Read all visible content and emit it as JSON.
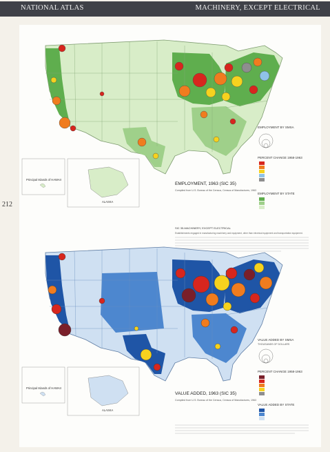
{
  "header": {
    "left_title": "NATIONAL ATLAS",
    "right_title": "MACHINERY, EXCEPT ELECTRICAL"
  },
  "page_number": "212",
  "colors": {
    "header_bg": "#3f4148",
    "state_green_dark": "#5fae4e",
    "state_green_mid": "#9fd08a",
    "state_green_light": "#d8edc8",
    "state_blue_dark": "#1f55a6",
    "state_blue_mid": "#4d87cf",
    "state_blue_light": "#cfe0f2",
    "change_red": "#d7261e",
    "change_orange": "#f07c1f",
    "change_yellow": "#f6d21e",
    "change_grey": "#8e8e8e",
    "change_lightblue": "#8fc3e8",
    "change_maroon": "#7a1f2a"
  },
  "map_employment": {
    "title": "EMPLOYMENT, 1963 (SIC 35)",
    "inset_hawaii": "Principal Islands of HAWAII",
    "inset_alaska": "ALASKA",
    "legend_employment_smsa": "EMPLOYMENT BY SMSA",
    "legend_percent_change": "PERCENT CHANGE 1958-1963",
    "legend_employment_state": "EMPLOYMENT BY STATE",
    "source_note": "Compiled from U.S. Bureau of the Census, Census of Manufactures, 1963"
  },
  "map_value_added": {
    "title": "VALUE ADDED, 1963 (SIC 35)",
    "inset_hawaii": "Principal Islands of HAWAII",
    "inset_alaska": "ALASKA",
    "legend_value_added_smsa": "VALUE ADDED BY SMSA",
    "legend_units": "THOUSANDS OF DOLLARS",
    "legend_percent_change": "PERCENT CHANGE 1958-1963",
    "legend_value_added_state": "VALUE ADDED BY STATE",
    "source_note": "Compiled from U.S. Bureau of the Census, Census of Manufactures, 1963"
  },
  "middle_text": {
    "heading": "SIC 35-MACHINERY, EXCEPT ELECTRICAL",
    "body": "Establishments engaged in manufacturing machinery and equipment, other than electrical equipment and transportation equipment."
  }
}
